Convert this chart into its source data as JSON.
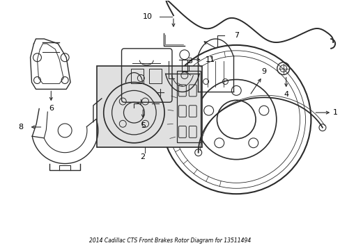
{
  "title": "2014 Cadillac CTS Front Brakes Rotor Diagram for 13511494",
  "background_color": "#ffffff",
  "line_color": "#2a2a2a",
  "label_color": "#000000",
  "box_fill": "#e0e0e0",
  "fig_width": 4.89,
  "fig_height": 3.6,
  "dpi": 100
}
